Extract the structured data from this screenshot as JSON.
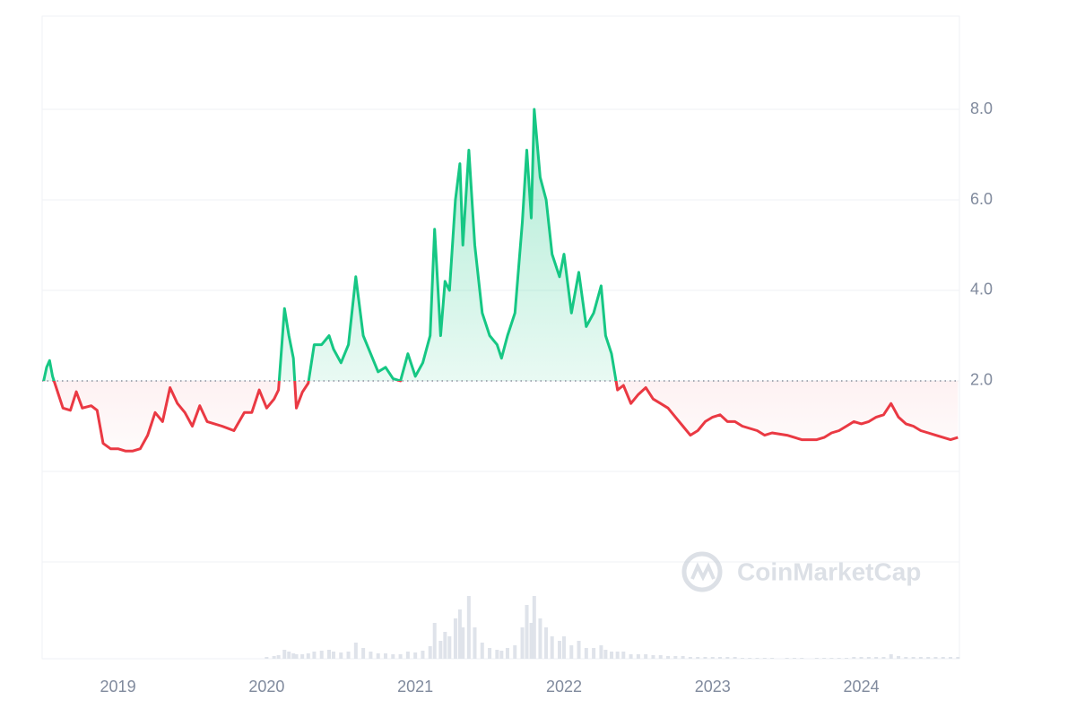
{
  "chart_data": {
    "type": "line",
    "watermark": "CoinMarketCap",
    "baseline": 2,
    "xlim": [
      2018.49,
      2024.66
    ],
    "xticks": [
      2019,
      2020,
      2021,
      2022,
      2023,
      2024
    ],
    "ylim": [
      -4.14,
      10.06
    ],
    "yticks": [
      {
        "value": 2,
        "label": "2.0"
      },
      {
        "value": 4,
        "label": "4.0"
      },
      {
        "value": 6,
        "label": "6.0"
      },
      {
        "value": 8,
        "label": "8.0"
      }
    ],
    "grid": true,
    "colors": {
      "above": "#16c784",
      "below": "#ea3943"
    },
    "volume_color": "#dfe3ea",
    "volume_lim": [
      0,
      100
    ],
    "x": [
      2018.5,
      2018.52,
      2018.54,
      2018.56,
      2018.6,
      2018.63,
      2018.68,
      2018.72,
      2018.76,
      2018.82,
      2018.86,
      2018.9,
      2018.95,
      2019.0,
      2019.05,
      2019.1,
      2019.15,
      2019.2,
      2019.25,
      2019.3,
      2019.35,
      2019.4,
      2019.45,
      2019.5,
      2019.55,
      2019.6,
      2019.7,
      2019.78,
      2019.85,
      2019.9,
      2019.95,
      2020.0,
      2020.05,
      2020.08,
      2020.12,
      2020.15,
      2020.18,
      2020.2,
      2020.24,
      2020.28,
      2020.32,
      2020.37,
      2020.42,
      2020.45,
      2020.5,
      2020.55,
      2020.6,
      2020.65,
      2020.7,
      2020.75,
      2020.8,
      2020.85,
      2020.9,
      2020.95,
      2021.0,
      2021.05,
      2021.1,
      2021.13,
      2021.17,
      2021.2,
      2021.23,
      2021.27,
      2021.3,
      2021.32,
      2021.36,
      2021.4,
      2021.45,
      2021.5,
      2021.55,
      2021.58,
      2021.62,
      2021.67,
      2021.72,
      2021.75,
      2021.78,
      2021.8,
      2021.84,
      2021.88,
      2021.92,
      2021.97,
      2022.0,
      2022.05,
      2022.1,
      2022.15,
      2022.2,
      2022.25,
      2022.28,
      2022.32,
      2022.36,
      2022.4,
      2022.45,
      2022.5,
      2022.55,
      2022.6,
      2022.65,
      2022.7,
      2022.75,
      2022.8,
      2022.85,
      2022.9,
      2022.95,
      2023.0,
      2023.05,
      2023.1,
      2023.15,
      2023.2,
      2023.25,
      2023.3,
      2023.35,
      2023.4,
      2023.5,
      2023.55,
      2023.6,
      2023.7,
      2023.75,
      2023.8,
      2023.85,
      2023.9,
      2023.95,
      2024.0,
      2024.05,
      2024.1,
      2024.15,
      2024.2,
      2024.25,
      2024.3,
      2024.35,
      2024.4,
      2024.45,
      2024.5,
      2024.55,
      2024.6,
      2024.65
    ],
    "values": [
      2.0,
      2.3,
      2.45,
      2.1,
      1.7,
      1.4,
      1.35,
      1.76,
      1.4,
      1.45,
      1.35,
      0.62,
      0.5,
      0.5,
      0.45,
      0.45,
      0.5,
      0.8,
      1.3,
      1.1,
      1.85,
      1.5,
      1.3,
      1.0,
      1.45,
      1.1,
      1.0,
      0.9,
      1.3,
      1.3,
      1.8,
      1.4,
      1.6,
      1.8,
      3.6,
      3.0,
      2.5,
      1.4,
      1.75,
      1.95,
      2.8,
      2.8,
      3.0,
      2.7,
      2.4,
      2.8,
      4.3,
      3.0,
      2.6,
      2.2,
      2.3,
      2.05,
      2.0,
      2.6,
      2.1,
      2.4,
      3.0,
      5.35,
      3.0,
      4.2,
      4.0,
      6.0,
      6.8,
      5.0,
      7.1,
      5.0,
      3.5,
      3.0,
      2.8,
      2.5,
      3.0,
      3.5,
      5.5,
      7.1,
      5.6,
      8.0,
      6.5,
      6.0,
      4.8,
      4.3,
      4.8,
      3.5,
      4.4,
      3.2,
      3.5,
      4.1,
      3.0,
      2.6,
      1.8,
      1.9,
      1.5,
      1.7,
      1.85,
      1.6,
      1.5,
      1.4,
      1.2,
      1.0,
      0.8,
      0.9,
      1.1,
      1.2,
      1.25,
      1.1,
      1.1,
      1.0,
      0.95,
      0.9,
      0.8,
      0.85,
      0.8,
      0.75,
      0.7,
      0.7,
      0.75,
      0.85,
      0.9,
      1.0,
      1.1,
      1.05,
      1.1,
      1.2,
      1.25,
      1.5,
      1.2,
      1.05,
      1.0,
      0.9,
      0.85,
      0.8,
      0.75,
      0.7,
      0.75
    ],
    "volume": [
      0,
      0,
      0,
      0,
      0,
      0,
      0,
      0,
      0,
      0,
      0,
      0,
      0,
      0,
      0,
      0,
      0,
      0,
      0,
      0,
      0,
      0,
      0,
      0,
      0,
      0,
      0,
      0,
      0,
      0,
      0,
      2,
      3,
      4,
      10,
      8,
      6,
      5,
      5,
      6,
      8,
      9,
      10,
      8,
      7,
      8,
      18,
      12,
      8,
      6,
      6,
      5,
      5,
      8,
      7,
      9,
      14,
      40,
      20,
      30,
      25,
      45,
      55,
      35,
      70,
      35,
      18,
      12,
      10,
      9,
      12,
      15,
      35,
      60,
      40,
      70,
      45,
      35,
      25,
      20,
      25,
      15,
      20,
      12,
      12,
      15,
      10,
      8,
      8,
      8,
      5,
      5,
      5,
      4,
      4,
      3,
      3,
      3,
      2,
      2,
      2,
      2,
      2,
      2,
      2,
      1,
      1,
      1,
      1,
      1,
      1,
      1,
      1,
      1,
      1,
      1,
      1,
      1,
      2,
      2,
      2,
      2,
      2,
      5,
      3,
      2,
      2,
      2,
      2,
      2,
      2,
      2,
      2
    ]
  }
}
